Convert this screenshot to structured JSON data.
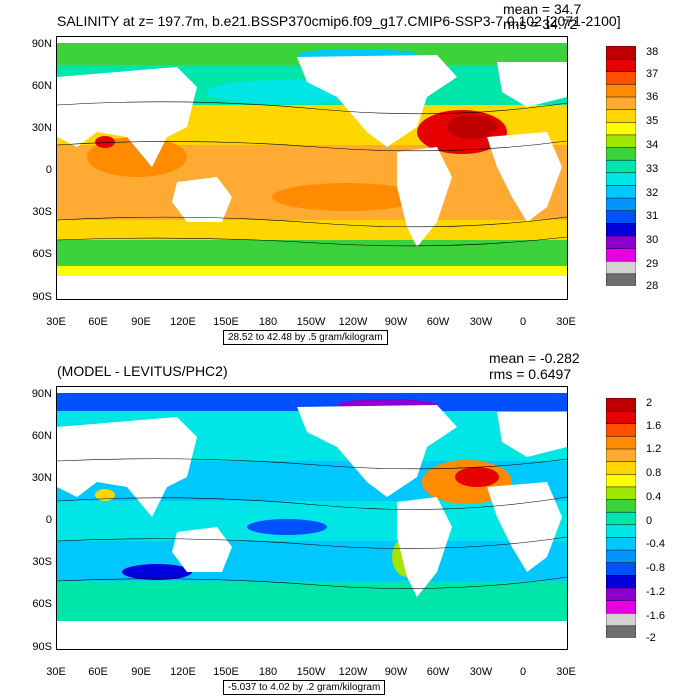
{
  "colors": {
    "top_scale": [
      "#6e6e6e",
      "#d2d2d2",
      "#e600e6",
      "#8c00d2",
      "#0000dc",
      "#0050ff",
      "#0096ff",
      "#00c8ff",
      "#00e6e6",
      "#00e6aa",
      "#3cd23c",
      "#a0e600",
      "#ffff00",
      "#ffd700",
      "#ffaa32",
      "#ff8c00",
      "#ff5000",
      "#e60000",
      "#be0000"
    ],
    "bottom_scale": [
      "#6e6e6e",
      "#d2d2d2",
      "#e600e6",
      "#8c00d2",
      "#0000dc",
      "#0050ff",
      "#0096ff",
      "#00c8ff",
      "#00e6e6",
      "#00e6aa",
      "#3cd23c",
      "#a0e600",
      "#ffff00",
      "#ffd700",
      "#ffaa32",
      "#ff8c00",
      "#ff5000",
      "#e60000",
      "#be0000"
    ]
  },
  "chart_data": [
    {
      "type": "heatmap",
      "title": "SALINITY at z= 197.7m, b.e21.BSSP370cmip6.f09_g17.CMIP6-SSP3-7.0.102 [2071-2100]",
      "mean_label": "mean = 34.7",
      "rms_label": "rms = 34.72",
      "x_ticks": [
        "30E",
        "60E",
        "90E",
        "120E",
        "150E",
        "180",
        "150W",
        "120W",
        "90W",
        "60W",
        "30W",
        "0",
        "30E"
      ],
      "y_ticks": [
        "90N",
        "60N",
        "30N",
        "0",
        "30S",
        "60S",
        "90S"
      ],
      "range_label": "28.52 to 42.48 by .5 gram/kilogram",
      "colorbar_labels": [
        "38",
        "37",
        "36",
        "35",
        "34",
        "33",
        "32",
        "31",
        "30",
        "29",
        "28"
      ],
      "colorbar_range": [
        28,
        38
      ]
    },
    {
      "type": "heatmap",
      "title": "(MODEL - LEVITUS/PHC2)",
      "mean_label": "mean = -0.282",
      "rms_label": "rms = 0.6497",
      "x_ticks": [
        "30E",
        "60E",
        "90E",
        "120E",
        "150E",
        "180",
        "150W",
        "120W",
        "90W",
        "60W",
        "30W",
        "0",
        "30E"
      ],
      "y_ticks": [
        "90N",
        "60N",
        "30N",
        "0",
        "30S",
        "60S",
        "90S"
      ],
      "range_label": "-5.037 to 4.02 by .2 gram/kilogram",
      "colorbar_labels": [
        "2",
        "1.6",
        "1.2",
        "0.8",
        "0.4",
        "0",
        "-0.4",
        "-0.8",
        "-1.2",
        "-1.6",
        "-2"
      ],
      "colorbar_range": [
        -2,
        2
      ]
    }
  ]
}
